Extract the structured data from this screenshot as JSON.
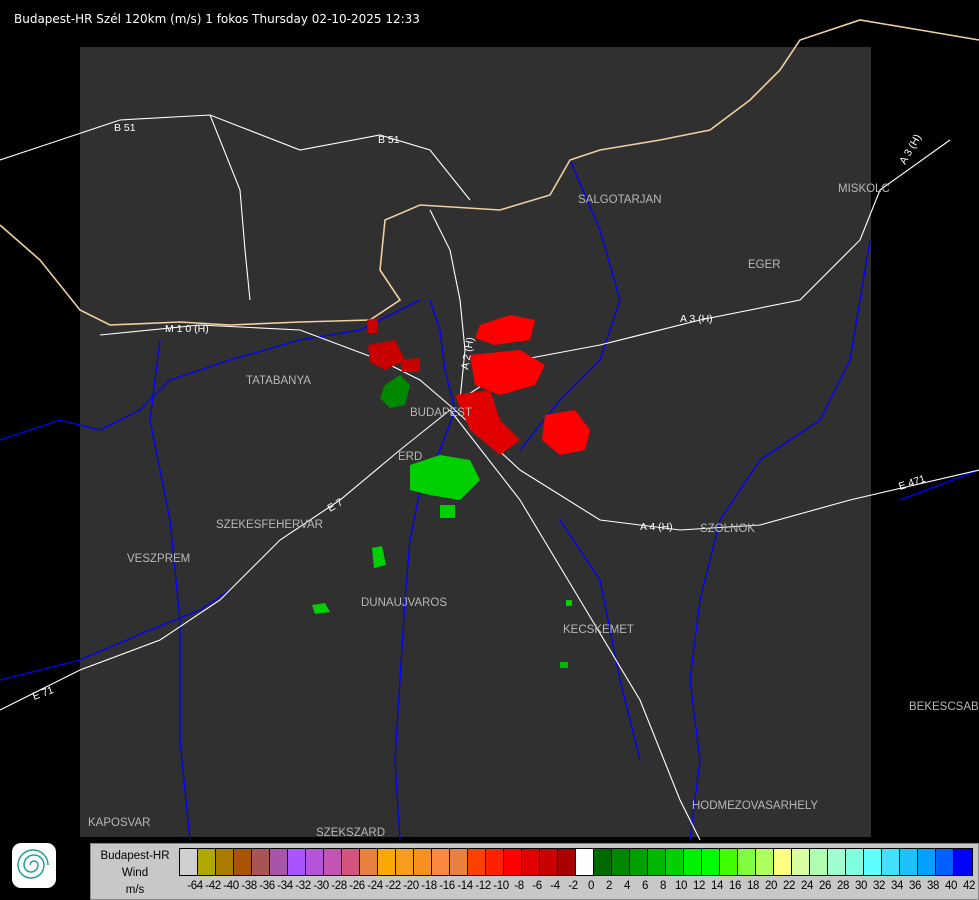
{
  "title": "Budapest-HR Szél 120km (m/s) 1 fokos Thursday 02-10-2025 12:33",
  "map": {
    "cities": [
      "SALGOTARJAN",
      "MISKOLC",
      "EGER",
      "TATABANYA",
      "BUDAPEST",
      "ERD",
      "SZEKESFEHERVAR",
      "VESZPREM",
      "DUNAUJVAROS",
      "KECSKEMET",
      "SZOLNOK",
      "BEKESCSABA",
      "KAPOSVAR",
      "SZEKSZARD",
      "HODMEZOVASARHELY"
    ],
    "roads": [
      "B 51",
      "B 51",
      "A 3 (H)",
      "A 3 (H)",
      "M 1 0 (H)",
      "A 2 (H)",
      "A 4 (H)",
      "E 471",
      "E 71",
      "E 7"
    ],
    "colors": {
      "background": "#000000",
      "coverage": "#303030",
      "rivers": "#0000ff",
      "roads": "#ffffff",
      "border": "#f0d0a0"
    }
  },
  "legend": {
    "station": "Budapest-HR",
    "product": "Wind",
    "unit": "m/s",
    "labels": [
      "-64",
      "-42",
      "-40",
      "-38",
      "-36",
      "-34",
      "-32",
      "-30",
      "-28",
      "-26",
      "-24",
      "-22",
      "-20",
      "-18",
      "-16",
      "-14",
      "-12",
      "-10",
      "-8",
      "-6",
      "-4",
      "-2",
      "0",
      "2",
      "4",
      "6",
      "8",
      "10",
      "12",
      "14",
      "16",
      "18",
      "20",
      "22",
      "24",
      "26",
      "28",
      "30",
      "32",
      "34",
      "36",
      "38",
      "40",
      "42"
    ],
    "colors": [
      "#d0d0d0",
      "#b0a800",
      "#a87c00",
      "#a85400",
      "#a85454",
      "#a854a8",
      "#a854ff",
      "#b454d8",
      "#c454b4",
      "#d45480",
      "#e88040",
      "#f8a800",
      "#f89c20",
      "#f89020",
      "#f88840",
      "#e88040",
      "#ff4000",
      "#ff2000",
      "#ff0000",
      "#e00000",
      "#c80000",
      "#a80000",
      "#ffffff",
      "#006800",
      "#008800",
      "#00a000",
      "#00b800",
      "#00d000",
      "#00f000",
      "#00ff00",
      "#40ff00",
      "#80ff40",
      "#b0ff60",
      "#ffff80",
      "#d8ffa0",
      "#b0ffb0",
      "#a0ffd0",
      "#80ffe0",
      "#60ffff",
      "#40e0ff",
      "#20c0ff",
      "#00a0ff",
      "#0060ff",
      "#0000ff"
    ]
  }
}
